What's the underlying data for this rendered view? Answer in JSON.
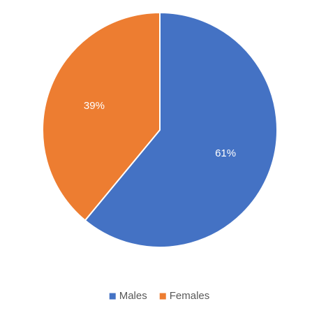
{
  "chart_data": {
    "type": "pie",
    "categories": [
      "Males",
      "Females"
    ],
    "values": [
      61,
      39
    ],
    "value_labels": [
      "61%",
      "39%"
    ],
    "colors": [
      "#4472c4",
      "#ed7d31"
    ],
    "legend": "bottom"
  }
}
